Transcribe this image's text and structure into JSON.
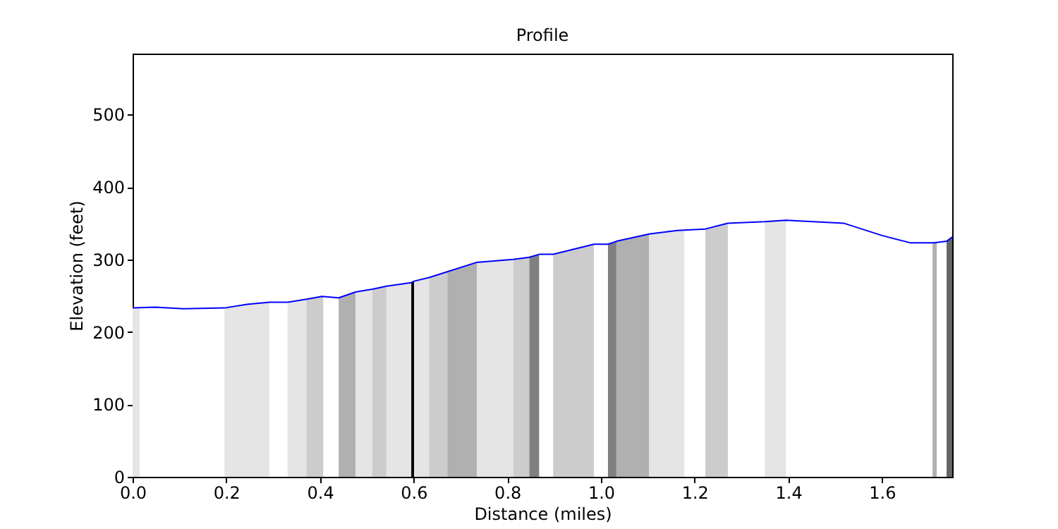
{
  "chart_data": {
    "type": "line",
    "title": "Profile",
    "xlabel": "Distance (miles)",
    "ylabel": "Elevation (feet)",
    "xlim": [
      0,
      1.75
    ],
    "ylim": [
      0,
      584
    ],
    "xticks": [
      {
        "value": 0,
        "label": "0.0"
      },
      {
        "value": 0.2,
        "label": "0.2"
      },
      {
        "value": 0.4,
        "label": "0.4"
      },
      {
        "value": 0.6,
        "label": "0.6"
      },
      {
        "value": 0.8,
        "label": "0.8"
      },
      {
        "value": 1.0,
        "label": "1.0"
      },
      {
        "value": 1.2,
        "label": "1.2"
      },
      {
        "value": 1.4,
        "label": "1.4"
      },
      {
        "value": 1.6,
        "label": "1.6"
      }
    ],
    "yticks": [
      0,
      100,
      200,
      300,
      400,
      500
    ],
    "grid": false,
    "series": [
      {
        "type": "area",
        "color": "#e5e5e5",
        "x": [
          0,
          0.015
        ],
        "values": [
          233,
          234
        ]
      },
      {
        "type": "area",
        "color": "#e5e5e5",
        "x": [
          0.196,
          0.244,
          0.292
        ],
        "values": [
          233,
          238,
          241
        ]
      },
      {
        "type": "area",
        "color": "#e5e5e5",
        "x": [
          0.331,
          0.371
        ],
        "values": [
          241,
          245
        ]
      },
      {
        "type": "area",
        "color": "#cccccc",
        "x": [
          0.371,
          0.404,
          0.407
        ],
        "values": [
          245,
          249,
          249
        ]
      },
      {
        "type": "area",
        "color": "#b0b0b0",
        "x": [
          0.44,
          0.476
        ],
        "values": [
          247,
          255
        ]
      },
      {
        "type": "area",
        "color": "#e5e5e5",
        "x": [
          0.476,
          0.512
        ],
        "values": [
          255,
          259
        ]
      },
      {
        "type": "area",
        "color": "#cccccc",
        "x": [
          0.512,
          0.542
        ],
        "values": [
          259,
          263
        ]
      },
      {
        "type": "area",
        "color": "#e5e5e5",
        "x": [
          0.542,
          0.595
        ],
        "values": [
          263,
          268
        ]
      },
      {
        "type": "area",
        "color": "#000000",
        "x": [
          0.595,
          0.601
        ],
        "values": [
          268,
          270
        ]
      },
      {
        "type": "area",
        "color": "#e5e5e5",
        "x": [
          0.601,
          0.633
        ],
        "values": [
          270,
          275
        ]
      },
      {
        "type": "area",
        "color": "#cccccc",
        "x": [
          0.633,
          0.672
        ],
        "values": [
          275,
          283
        ]
      },
      {
        "type": "area",
        "color": "#b0b0b0",
        "x": [
          0.672,
          0.735
        ],
        "values": [
          283,
          296
        ]
      },
      {
        "type": "area",
        "color": "#e5e5e5",
        "x": [
          0.735,
          0.813
        ],
        "values": [
          296,
          300
        ]
      },
      {
        "type": "area",
        "color": "#cccccc",
        "x": [
          0.813,
          0.847
        ],
        "values": [
          300,
          303
        ]
      },
      {
        "type": "area",
        "color": "#808080",
        "x": [
          0.847,
          0.868
        ],
        "values": [
          303,
          307
        ]
      },
      {
        "type": "area",
        "color": "#cccccc",
        "x": [
          0.898,
          0.985
        ],
        "values": [
          307,
          321
        ]
      },
      {
        "type": "area",
        "color": "#808080",
        "x": [
          1.015,
          1.033
        ],
        "values": [
          321,
          325
        ]
      },
      {
        "type": "area",
        "color": "#b0b0b0",
        "x": [
          1.033,
          1.103
        ],
        "values": [
          325,
          335
        ]
      },
      {
        "type": "area",
        "color": "#e5e5e5",
        "x": [
          1.103,
          1.163,
          1.178
        ],
        "values": [
          335,
          340,
          341
        ]
      },
      {
        "type": "area",
        "color": "#cccccc",
        "x": [
          1.223,
          1.271
        ],
        "values": [
          342,
          350
        ]
      },
      {
        "type": "area",
        "color": "#e5e5e5",
        "x": [
          1.35,
          1.395
        ],
        "values": [
          352,
          354
        ]
      },
      {
        "type": "area",
        "color": "#b0b0b0",
        "x": [
          1.708,
          1.717
        ],
        "values": [
          323,
          323
        ]
      },
      {
        "type": "area",
        "color": "#666666",
        "x": [
          1.738,
          1.75
        ],
        "values": [
          325,
          331
        ]
      },
      {
        "type": "line",
        "color": "#0000ff",
        "x": [
          0,
          0.048,
          0.108,
          0.196,
          0.244,
          0.292,
          0.331,
          0.371,
          0.404,
          0.44,
          0.476,
          0.512,
          0.542,
          0.595,
          0.601,
          0.633,
          0.672,
          0.735,
          0.813,
          0.847,
          0.868,
          0.898,
          0.985,
          1.015,
          1.033,
          1.103,
          1.163,
          1.223,
          1.271,
          1.35,
          1.395,
          1.518,
          1.6,
          1.66,
          1.711,
          1.738,
          1.75
        ],
        "values": [
          233,
          234,
          232,
          233,
          238,
          241,
          241,
          245,
          249,
          247,
          255,
          259,
          263,
          268,
          270,
          275,
          283,
          296,
          300,
          303,
          307,
          307,
          321,
          321,
          325,
          335,
          340,
          342,
          350,
          352,
          354,
          350,
          333,
          323,
          323,
          325,
          331
        ]
      }
    ]
  }
}
